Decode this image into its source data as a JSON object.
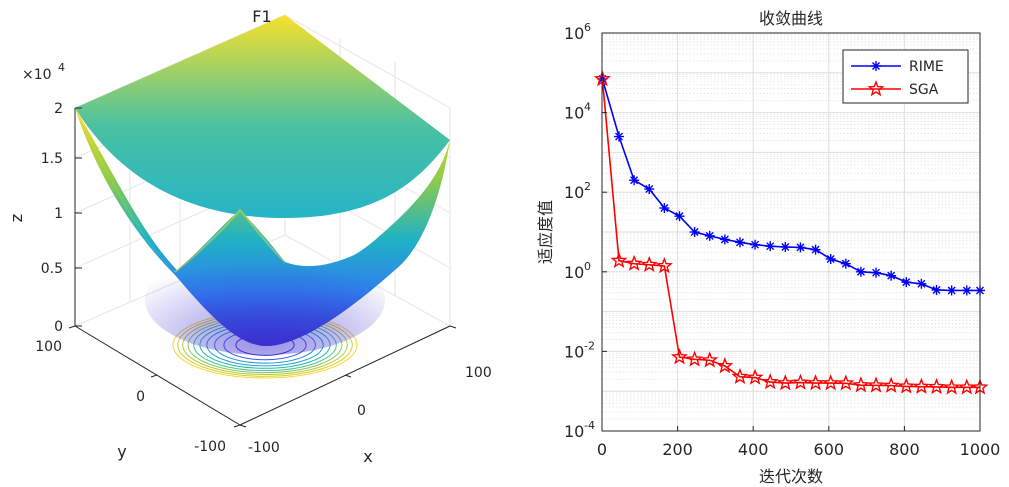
{
  "chart_data": [
    {
      "type": "surface",
      "title": "F1",
      "function": "z = x^2 + y^2",
      "xlabel": "x",
      "ylabel": "y",
      "zlabel": "z",
      "xlim": [
        -100,
        100
      ],
      "ylim": [
        -100,
        100
      ],
      "zlim": [
        0,
        20000
      ],
      "x_ticks": [
        "-100",
        "0",
        "100"
      ],
      "y_ticks": [
        "-100",
        "0",
        "100"
      ],
      "z_ticks": [
        "0",
        "0.5",
        "1",
        "1.5",
        "2"
      ],
      "z_exponent_base": "×10",
      "z_exponent_power": "4",
      "contour_levels": [
        1000,
        2000,
        3000,
        4000,
        5000,
        6000,
        7000,
        8000,
        9000,
        10000
      ]
    },
    {
      "type": "line",
      "title": "收敛曲线",
      "xlabel": "迭代次数",
      "ylabel": "适应度值",
      "yscale": "log",
      "xlim": [
        0,
        1000
      ],
      "ylim_exponents": [
        -4,
        6
      ],
      "x_ticks": [
        "0",
        "200",
        "400",
        "600",
        "800",
        "1000"
      ],
      "y_ticks": [
        {
          "base": "10",
          "exp": "-4"
        },
        {
          "base": "10",
          "exp": "-2"
        },
        {
          "base": "10",
          "exp": "0"
        },
        {
          "base": "10",
          "exp": "2"
        },
        {
          "base": "10",
          "exp": "4"
        },
        {
          "base": "10",
          "exp": "6"
        }
      ],
      "legend_position": "top-right",
      "series": [
        {
          "name": "RIME",
          "color": "#0000ff",
          "marker": "asterisk",
          "x": [
            1,
            45,
            85,
            125,
            165,
            205,
            245,
            285,
            325,
            365,
            405,
            445,
            485,
            525,
            565,
            605,
            645,
            685,
            725,
            765,
            805,
            845,
            885,
            925,
            965,
            1000
          ],
          "y": [
            70000,
            2500,
            200,
            120,
            40,
            25,
            10,
            8,
            6.5,
            5.5,
            4.8,
            4.4,
            4.2,
            4.1,
            3.6,
            2.1,
            1.6,
            1.0,
            0.95,
            0.8,
            0.55,
            0.5,
            0.35,
            0.34,
            0.34,
            0.34
          ]
        },
        {
          "name": "SGA",
          "color": "#ff0000",
          "marker": "pentagram",
          "x": [
            1,
            45,
            85,
            125,
            165,
            205,
            245,
            285,
            325,
            365,
            405,
            445,
            485,
            525,
            565,
            605,
            645,
            685,
            725,
            765,
            805,
            845,
            885,
            925,
            965,
            1000
          ],
          "y": [
            70000,
            1.9,
            1.6,
            1.5,
            1.4,
            0.0072,
            0.0063,
            0.006,
            0.0043,
            0.0023,
            0.0022,
            0.0017,
            0.0016,
            0.00165,
            0.0016,
            0.0016,
            0.00158,
            0.00142,
            0.0014,
            0.00138,
            0.00132,
            0.0013,
            0.00128,
            0.00125,
            0.00125,
            0.00125
          ]
        }
      ]
    }
  ]
}
